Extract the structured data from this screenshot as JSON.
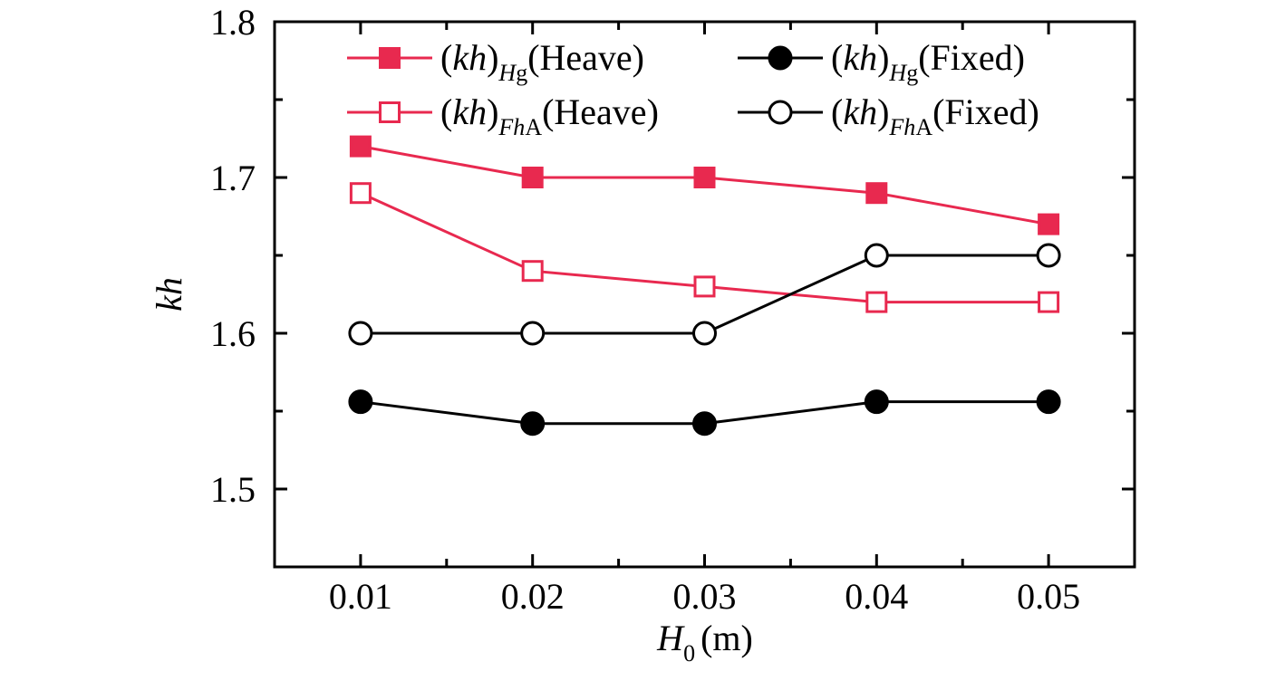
{
  "chart_data": {
    "type": "line",
    "x": [
      0.01,
      0.02,
      0.03,
      0.04,
      0.05
    ],
    "xlabel": {
      "main": "H",
      "sub": "0",
      "unit": "(m)"
    },
    "ylabel": "kh",
    "xlim": [
      0.005,
      0.055
    ],
    "ylim": [
      1.45,
      1.8
    ],
    "xticks": [
      0.01,
      0.02,
      0.03,
      0.04,
      0.05
    ],
    "xtick_labels": [
      "0.01",
      "0.02",
      "0.03",
      "0.04",
      "0.05"
    ],
    "yticks": [
      1.5,
      1.6,
      1.7,
      1.8
    ],
    "ytick_labels": [
      "1.5",
      "1.6",
      "1.7",
      "1.8"
    ],
    "legend_position": "top",
    "series": [
      {
        "key": "hg_heave",
        "name_parts": {
          "pre": "(",
          "it": "kh",
          "close": ")",
          "sub": "Hg",
          "post": "(Heave)"
        },
        "color": "#e8294f",
        "marker": "square",
        "filled": true,
        "values": [
          1.72,
          1.7,
          1.7,
          1.69,
          1.67
        ]
      },
      {
        "key": "fha_heave",
        "name_parts": {
          "pre": "(",
          "it": "kh",
          "close": ")",
          "sub": "FhA",
          "post": "(Heave)"
        },
        "color": "#e8294f",
        "marker": "square",
        "filled": false,
        "values": [
          1.69,
          1.64,
          1.63,
          1.62,
          1.62
        ]
      },
      {
        "key": "hg_fixed",
        "name_parts": {
          "pre": "(",
          "it": "kh",
          "close": ")",
          "sub": "Hg",
          "post": "(Fixed)"
        },
        "color": "#000000",
        "marker": "circle",
        "filled": true,
        "values": [
          1.556,
          1.542,
          1.542,
          1.556,
          1.556
        ]
      },
      {
        "key": "fha_fixed",
        "name_parts": {
          "pre": "(",
          "it": "kh",
          "close": ")",
          "sub": "FhA",
          "post": "(Fixed)"
        },
        "color": "#000000",
        "marker": "circle",
        "filled": false,
        "values": [
          1.6,
          1.6,
          1.6,
          1.65,
          1.65
        ]
      }
    ]
  }
}
